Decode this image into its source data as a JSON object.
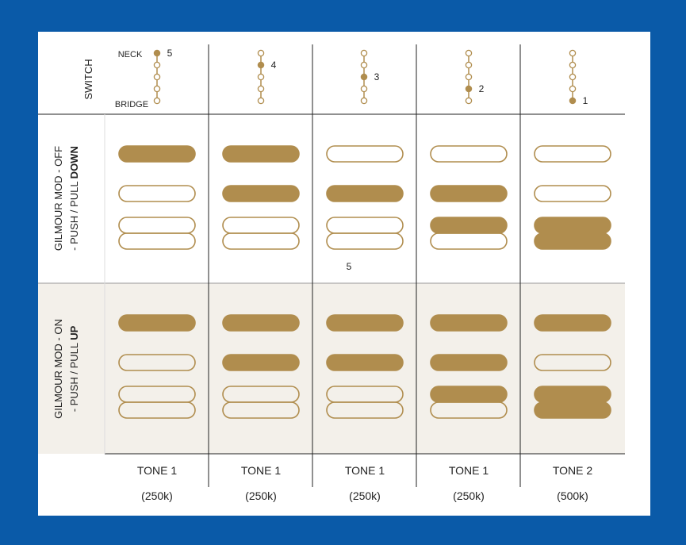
{
  "switch_header": {
    "label": "SWITCH",
    "neck": "NECK",
    "bridge": "BRIDGE",
    "positions": [
      "5",
      "4",
      "3",
      "2",
      "1"
    ]
  },
  "rows": [
    {
      "label_line1": "GILMOUR MOD - OFF",
      "label_line2_prefix": "- PUSH / PULL ",
      "label_line2_bold": "DOWN",
      "cells": [
        {
          "neck": "filled",
          "middle": "outline",
          "bridge": "outline"
        },
        {
          "neck": "filled",
          "middle": "filled",
          "bridge": "outline"
        },
        {
          "neck": "outline",
          "middle": "filled",
          "bridge": "outline",
          "note": "5"
        },
        {
          "neck": "outline",
          "middle": "filled",
          "bridge": "filled-top"
        },
        {
          "neck": "outline",
          "middle": "outline",
          "bridge": "filled"
        }
      ]
    },
    {
      "label_line1": "GILMOUR MOD - ON",
      "label_line2_prefix": "- PUSH / PULL ",
      "label_line2_bold": "UP",
      "cells": [
        {
          "neck": "filled",
          "middle": "outline",
          "bridge": "outline"
        },
        {
          "neck": "filled",
          "middle": "filled",
          "bridge": "outline"
        },
        {
          "neck": "filled",
          "middle": "filled",
          "bridge": "outline"
        },
        {
          "neck": "filled",
          "middle": "filled",
          "bridge": "filled-top"
        },
        {
          "neck": "filled",
          "middle": "outline",
          "bridge": "filled"
        }
      ]
    }
  ],
  "tone_labels": [
    {
      "name": "TONE 1",
      "value": "(250k)"
    },
    {
      "name": "TONE 1",
      "value": "(250k)"
    },
    {
      "name": "TONE 1",
      "value": "(250k)"
    },
    {
      "name": "TONE 1",
      "value": "(250k)"
    },
    {
      "name": "TONE 2",
      "value": "(500k)"
    }
  ],
  "colors": {
    "background": "#0a5aa8",
    "card": "#ffffff",
    "gold": "#b08d4e",
    "shaded_row": "#f3f0ea",
    "lines": "#222222"
  }
}
